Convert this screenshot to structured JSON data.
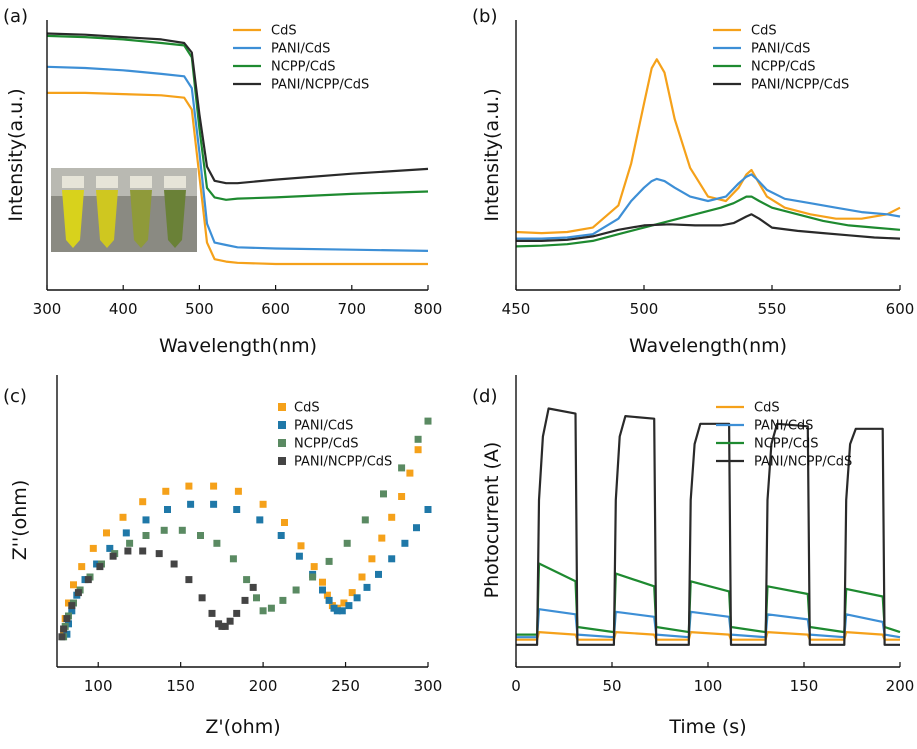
{
  "panels": [
    "(a)",
    "(b)",
    "(c)",
    "(d)"
  ],
  "colors": {
    "CdS": "#f5a11a",
    "PANI/CdS": "#3d8fd6",
    "NCPP/CdS": "#1e8a30",
    "PANI/NCPP/CdS": "#2a2a2a",
    "CdS_marker": "#f5a11a",
    "PANI/CdS_marker": "#1f78a8",
    "NCPP/CdS_marker": "#5a8a62",
    "PANI/NCPP/CdS_marker": "#444444"
  },
  "chart_data": [
    {
      "panel": "(a)",
      "type": "line",
      "xlabel": "Wavelength(nm)",
      "ylabel": "Intensity(a.u.)",
      "xlim": [
        300,
        800
      ],
      "ylim": [
        0,
        1
      ],
      "xticks": [
        300,
        400,
        500,
        600,
        700,
        800
      ],
      "legend": "top-right",
      "inset_photo": true,
      "series": [
        {
          "name": "CdS",
          "x": [
            300,
            350,
            400,
            450,
            480,
            490,
            500,
            510,
            520,
            535,
            550,
            600,
            700,
            800
          ],
          "y": [
            0.75,
            0.75,
            0.745,
            0.74,
            0.73,
            0.68,
            0.4,
            0.12,
            0.05,
            0.04,
            0.035,
            0.03,
            0.03,
            0.03
          ]
        },
        {
          "name": "PANI/CdS",
          "x": [
            300,
            350,
            400,
            450,
            480,
            490,
            500,
            510,
            520,
            535,
            550,
            600,
            700,
            800
          ],
          "y": [
            0.86,
            0.855,
            0.845,
            0.83,
            0.82,
            0.77,
            0.5,
            0.2,
            0.12,
            0.11,
            0.1,
            0.095,
            0.09,
            0.085
          ]
        },
        {
          "name": "NCPP/CdS",
          "x": [
            300,
            350,
            400,
            450,
            480,
            490,
            500,
            510,
            520,
            535,
            550,
            600,
            700,
            800
          ],
          "y": [
            0.99,
            0.985,
            0.975,
            0.96,
            0.95,
            0.9,
            0.6,
            0.35,
            0.31,
            0.3,
            0.305,
            0.31,
            0.325,
            0.335
          ]
        },
        {
          "name": "PANI/NCPP/CdS",
          "x": [
            300,
            350,
            400,
            450,
            480,
            490,
            500,
            510,
            520,
            535,
            550,
            600,
            700,
            800
          ],
          "y": [
            1.0,
            0.995,
            0.985,
            0.975,
            0.96,
            0.92,
            0.66,
            0.44,
            0.38,
            0.37,
            0.37,
            0.385,
            0.41,
            0.43
          ]
        }
      ]
    },
    {
      "panel": "(b)",
      "type": "line",
      "xlabel": "Wavelength(nm)",
      "ylabel": "Intensity(a.u.)",
      "xlim": [
        450,
        600
      ],
      "ylim": [
        0,
        1
      ],
      "xticks": [
        450,
        500,
        550,
        600
      ],
      "legend": "top-right",
      "series": [
        {
          "name": "CdS",
          "x": [
            450,
            460,
            470,
            480,
            490,
            495,
            500,
            503,
            505,
            508,
            512,
            518,
            525,
            532,
            537,
            540,
            542,
            544,
            548,
            555,
            565,
            575,
            585,
            595,
            600
          ],
          "y": [
            0.14,
            0.135,
            0.14,
            0.16,
            0.26,
            0.45,
            0.72,
            0.88,
            0.92,
            0.86,
            0.65,
            0.43,
            0.3,
            0.28,
            0.34,
            0.4,
            0.42,
            0.38,
            0.3,
            0.25,
            0.22,
            0.2,
            0.2,
            0.22,
            0.25
          ]
        },
        {
          "name": "PANI/CdS",
          "x": [
            450,
            460,
            470,
            480,
            490,
            495,
            500,
            503,
            505,
            508,
            512,
            518,
            525,
            532,
            537,
            540,
            542,
            544,
            548,
            555,
            565,
            575,
            585,
            595,
            600
          ],
          "y": [
            0.11,
            0.11,
            0.115,
            0.13,
            0.2,
            0.28,
            0.34,
            0.37,
            0.38,
            0.37,
            0.34,
            0.3,
            0.28,
            0.3,
            0.36,
            0.39,
            0.4,
            0.38,
            0.33,
            0.29,
            0.27,
            0.25,
            0.23,
            0.22,
            0.21
          ]
        },
        {
          "name": "NCPP/CdS",
          "x": [
            450,
            460,
            470,
            480,
            490,
            500,
            510,
            520,
            530,
            535,
            540,
            542,
            545,
            550,
            560,
            570,
            580,
            590,
            600
          ],
          "y": [
            0.075,
            0.078,
            0.085,
            0.1,
            0.13,
            0.16,
            0.19,
            0.22,
            0.25,
            0.27,
            0.3,
            0.3,
            0.28,
            0.25,
            0.22,
            0.19,
            0.17,
            0.16,
            0.15
          ]
        },
        {
          "name": "PANI/NCPP/CdS",
          "x": [
            450,
            460,
            470,
            480,
            490,
            500,
            510,
            520,
            530,
            535,
            540,
            542,
            545,
            550,
            560,
            570,
            580,
            590,
            600
          ],
          "y": [
            0.1,
            0.1,
            0.105,
            0.12,
            0.15,
            0.17,
            0.175,
            0.17,
            0.17,
            0.18,
            0.21,
            0.22,
            0.2,
            0.16,
            0.145,
            0.135,
            0.125,
            0.115,
            0.11
          ]
        }
      ]
    },
    {
      "panel": "(c)",
      "type": "scatter",
      "xlabel": "Z'(ohm)",
      "ylabel": "Z''(ohm)",
      "xlim": [
        75,
        300
      ],
      "ylim": [
        0,
        100
      ],
      "xticks": [
        100,
        150,
        200,
        250,
        300
      ],
      "legend": "top-right",
      "series": [
        {
          "name": "CdS",
          "x": [
            79,
            80,
            82,
            85,
            90,
            97,
            105,
            115,
            127,
            141,
            155,
            170,
            185,
            200,
            213,
            223,
            231,
            236,
            239,
            242,
            245,
            249,
            254,
            260,
            266,
            272,
            278,
            284,
            289,
            294
          ],
          "y": [
            8,
            13,
            19,
            26,
            33,
            40,
            46,
            52,
            58,
            62,
            64,
            64,
            62,
            57,
            50,
            41,
            33,
            27,
            22,
            18,
            17,
            19,
            23,
            29,
            36,
            44,
            52,
            60,
            69,
            78
          ]
        },
        {
          "name": "PANI/CdS",
          "x": [
            81,
            82,
            84,
            87,
            92,
            99,
            107,
            117,
            129,
            142,
            156,
            170,
            184,
            198,
            211,
            222,
            230,
            236,
            240,
            243,
            245,
            248,
            252,
            257,
            263,
            270,
            278,
            286,
            293,
            300
          ],
          "y": [
            7,
            11,
            16,
            22,
            28,
            34,
            40,
            46,
            51,
            55,
            57,
            57,
            55,
            51,
            45,
            37,
            30,
            24,
            20,
            17,
            16,
            16,
            18,
            21,
            25,
            30,
            36,
            42,
            48,
            55
          ]
        },
        {
          "name": "NCPP/CdS",
          "x": [
            79,
            80,
            82,
            85,
            89,
            95,
            102,
            110,
            119,
            129,
            140,
            151,
            162,
            172,
            182,
            190,
            196,
            200,
            205,
            212,
            220,
            230,
            240,
            251,
            262,
            273,
            284,
            294,
            300
          ],
          "y": [
            6,
            10,
            14,
            19,
            24,
            29,
            34,
            38,
            42,
            45,
            47,
            47,
            45,
            42,
            36,
            28,
            21,
            16,
            17,
            20,
            24,
            29,
            35,
            42,
            51,
            61,
            71,
            82,
            89
          ]
        },
        {
          "name": "PANI/NCPP/CdS",
          "x": [
            78,
            79,
            81,
            84,
            88,
            94,
            101,
            109,
            118,
            127,
            137,
            146,
            155,
            163,
            169,
            173,
            175,
            177,
            180,
            184,
            189,
            194
          ],
          "y": [
            6,
            9,
            13,
            18,
            23,
            28,
            33,
            37,
            39,
            39,
            38,
            34,
            28,
            21,
            15,
            11,
            10,
            10,
            12,
            15,
            20,
            25
          ]
        }
      ]
    },
    {
      "panel": "(d)",
      "type": "line",
      "xlabel": "Time (s)",
      "ylabel": "Photocurrent (A)",
      "xlim": [
        0,
        200
      ],
      "ylim": [
        0,
        1
      ],
      "xticks": [
        0,
        50,
        100,
        150,
        200
      ],
      "legend": "top-right",
      "on_off_cycles": [
        [
          12,
          31
        ],
        [
          52,
          72
        ],
        [
          91,
          111
        ],
        [
          131,
          152
        ],
        [
          172,
          191
        ]
      ],
      "series": [
        {
          "name": "CdS",
          "x": [
            0,
            11,
            12,
            31,
            32,
            51,
            52,
            72,
            73,
            90,
            91,
            111,
            112,
            130,
            131,
            152,
            153,
            171,
            172,
            191,
            192,
            200
          ],
          "y": [
            0.05,
            0.05,
            0.08,
            0.07,
            0.05,
            0.05,
            0.08,
            0.07,
            0.05,
            0.05,
            0.08,
            0.07,
            0.05,
            0.05,
            0.08,
            0.07,
            0.05,
            0.05,
            0.08,
            0.07,
            0.05,
            0.05
          ]
        },
        {
          "name": "PANI/CdS",
          "x": [
            0,
            11,
            12,
            31,
            32,
            51,
            52,
            72,
            73,
            90,
            91,
            111,
            112,
            130,
            131,
            152,
            153,
            171,
            172,
            191,
            192,
            200
          ],
          "y": [
            0.06,
            0.06,
            0.17,
            0.15,
            0.07,
            0.06,
            0.16,
            0.14,
            0.07,
            0.06,
            0.16,
            0.14,
            0.07,
            0.06,
            0.15,
            0.13,
            0.07,
            0.06,
            0.15,
            0.12,
            0.07,
            0.06
          ]
        },
        {
          "name": "NCPP/CdS",
          "x": [
            0,
            11,
            12,
            31,
            32,
            51,
            52,
            72,
            73,
            90,
            91,
            111,
            112,
            130,
            131,
            152,
            153,
            171,
            172,
            191,
            192,
            200
          ],
          "y": [
            0.07,
            0.07,
            0.35,
            0.28,
            0.1,
            0.08,
            0.31,
            0.26,
            0.1,
            0.08,
            0.28,
            0.24,
            0.1,
            0.08,
            0.26,
            0.23,
            0.1,
            0.08,
            0.25,
            0.22,
            0.1,
            0.08
          ]
        },
        {
          "name": "PANI/NCPP/CdS",
          "x": [
            0,
            11,
            12,
            14,
            17,
            31,
            32,
            51,
            52,
            54,
            57,
            72,
            73,
            90,
            91,
            93,
            96,
            111,
            112,
            130,
            131,
            133,
            136,
            152,
            153,
            171,
            172,
            174,
            177,
            191,
            192,
            200
          ],
          "y": [
            0.03,
            0.03,
            0.6,
            0.85,
            0.96,
            0.94,
            0.03,
            0.03,
            0.6,
            0.85,
            0.93,
            0.92,
            0.03,
            0.03,
            0.6,
            0.82,
            0.9,
            0.9,
            0.03,
            0.03,
            0.6,
            0.82,
            0.9,
            0.89,
            0.03,
            0.03,
            0.6,
            0.82,
            0.88,
            0.88,
            0.03,
            0.03
          ]
        }
      ]
    }
  ]
}
